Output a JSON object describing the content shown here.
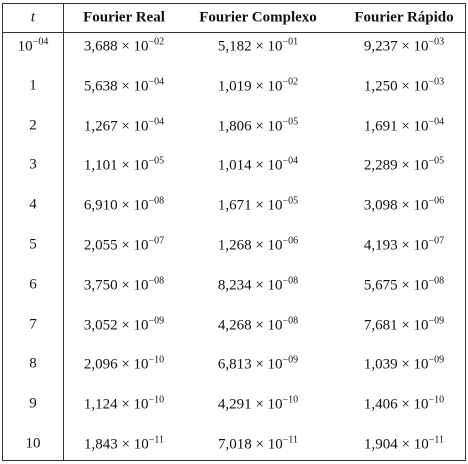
{
  "table": {
    "header": [
      "t",
      "Fourier Real",
      "Fourier Complexo",
      "Fourier Rápido"
    ],
    "rows": [
      [
        {
          "base": "10",
          "exp": "−04"
        },
        {
          "base": "3,688 × 10",
          "exp": "−02"
        },
        {
          "base": "5,182 × 10",
          "exp": "−01"
        },
        {
          "base": "9,237 × 10",
          "exp": "−03"
        }
      ],
      [
        "1",
        {
          "base": "5,638 × 10",
          "exp": "−04"
        },
        {
          "base": "1,019 × 10",
          "exp": "−02"
        },
        {
          "base": "1,250 × 10",
          "exp": "−03"
        }
      ],
      [
        "2",
        {
          "base": "1,267 × 10",
          "exp": "−04"
        },
        {
          "base": "1,806 × 10",
          "exp": "−05"
        },
        {
          "base": "1,691 × 10",
          "exp": "−04"
        }
      ],
      [
        "3",
        {
          "base": "1,101 × 10",
          "exp": "−05"
        },
        {
          "base": "1,014 × 10",
          "exp": "−04"
        },
        {
          "base": "2,289 × 10",
          "exp": "−05"
        }
      ],
      [
        "4",
        {
          "base": "6,910 × 10",
          "exp": "−08"
        },
        {
          "base": "1,671 × 10",
          "exp": "−05"
        },
        {
          "base": "3,098 × 10",
          "exp": "−06"
        }
      ],
      [
        "5",
        {
          "base": "2,055 × 10",
          "exp": "−07"
        },
        {
          "base": "1,268 × 10",
          "exp": "−06"
        },
        {
          "base": "4,193 × 10",
          "exp": "−07"
        }
      ],
      [
        "6",
        {
          "base": "3,750 × 10",
          "exp": "−08"
        },
        {
          "base": "8,234 × 10",
          "exp": "−08"
        },
        {
          "base": "5,675 × 10",
          "exp": "−08"
        }
      ],
      [
        "7",
        {
          "base": "3,052 × 10",
          "exp": "−09"
        },
        {
          "base": "4,268 × 10",
          "exp": "−08"
        },
        {
          "base": "7,681 × 10",
          "exp": "−09"
        }
      ],
      [
        "8",
        {
          "base": "2,096 × 10",
          "exp": "−10"
        },
        {
          "base": "6,813 × 10",
          "exp": "−09"
        },
        {
          "base": "1,039 × 10",
          "exp": "−09"
        }
      ],
      [
        "9",
        {
          "base": "1,124 × 10",
          "exp": "−10"
        },
        {
          "base": "4,291 × 10",
          "exp": "−10"
        },
        {
          "base": "1,406 × 10",
          "exp": "−10"
        }
      ],
      [
        "10",
        {
          "base": "1,843 × 10",
          "exp": "−11"
        },
        {
          "base": "7,018 × 10",
          "exp": "−11"
        },
        {
          "base": "1,904 × 10",
          "exp": "−11"
        }
      ]
    ]
  }
}
